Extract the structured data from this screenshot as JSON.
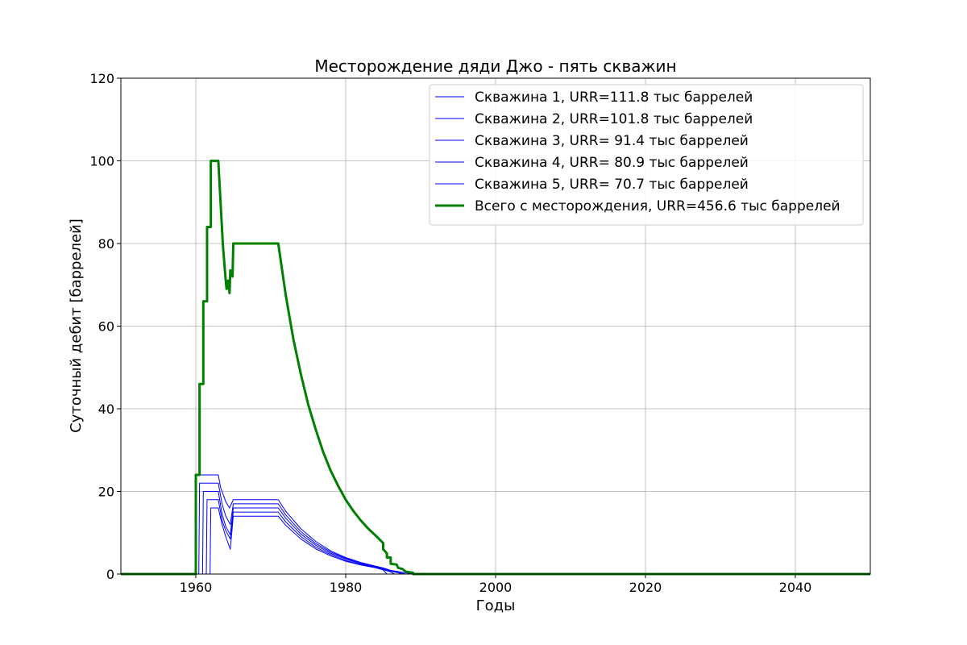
{
  "chart_data": {
    "type": "line",
    "title": "Месторождение дяди Джо - пять скважин",
    "xlabel": "Годы",
    "ylabel": "Суточный дебит [баррелей]",
    "xlim": [
      1950,
      2050
    ],
    "ylim": [
      0,
      120
    ],
    "xticks": [
      1960,
      1980,
      2000,
      2020,
      2040
    ],
    "yticks": [
      0,
      20,
      40,
      60,
      80,
      100,
      120
    ],
    "grid": true,
    "legend_position": "top-right",
    "series": [
      {
        "name": "Скважина 1, URR=111.8 тыс баррелей",
        "color": "#0000ff",
        "linewidth": "thin",
        "points": [
          [
            1950,
            0
          ],
          [
            1959.9,
            0
          ],
          [
            1960,
            24
          ],
          [
            1963,
            24
          ],
          [
            1963.3,
            21
          ],
          [
            1964,
            17.5
          ],
          [
            1964.5,
            16
          ],
          [
            1965,
            18
          ],
          [
            1971,
            18
          ],
          [
            1972,
            15.2
          ],
          [
            1974,
            11
          ],
          [
            1976,
            7.9
          ],
          [
            1978,
            5.6
          ],
          [
            1980,
            4
          ],
          [
            1982,
            2.8
          ],
          [
            1984,
            1.9
          ],
          [
            1985,
            1.5
          ],
          [
            1986,
            0.9
          ],
          [
            1987,
            0.6
          ],
          [
            1988,
            0.3
          ],
          [
            1989,
            0
          ],
          [
            2050,
            0
          ]
        ]
      },
      {
        "name": "Скважина 2, URR=101.8 тыс баррелей",
        "color": "#0000ff",
        "linewidth": "thin",
        "points": [
          [
            1950,
            0
          ],
          [
            1960.4,
            0
          ],
          [
            1960.5,
            22
          ],
          [
            1963,
            22
          ],
          [
            1963.5,
            17
          ],
          [
            1964,
            14
          ],
          [
            1964.6,
            12
          ],
          [
            1965,
            17
          ],
          [
            1971,
            17
          ],
          [
            1972,
            14.3
          ],
          [
            1974,
            10.3
          ],
          [
            1976,
            7.4
          ],
          [
            1978,
            5.3
          ],
          [
            1980,
            3.8
          ],
          [
            1982,
            2.6
          ],
          [
            1984,
            1.8
          ],
          [
            1985,
            1.3
          ],
          [
            1986,
            0.8
          ],
          [
            1987,
            0.4
          ],
          [
            1988,
            0
          ],
          [
            2050,
            0
          ]
        ]
      },
      {
        "name": "Скважина 3, URR= 91.4 тыс баррелей",
        "color": "#0000ff",
        "linewidth": "thin",
        "points": [
          [
            1950,
            0
          ],
          [
            1960.9,
            0
          ],
          [
            1961,
            20
          ],
          [
            1963,
            20
          ],
          [
            1963.5,
            14.5
          ],
          [
            1964,
            11.5
          ],
          [
            1964.6,
            9.5
          ],
          [
            1965,
            16
          ],
          [
            1971,
            16
          ],
          [
            1972,
            13.5
          ],
          [
            1974,
            9.7
          ],
          [
            1976,
            7
          ],
          [
            1978,
            5
          ],
          [
            1980,
            3.6
          ],
          [
            1982,
            2.5
          ],
          [
            1984,
            1.7
          ],
          [
            1985,
            1.2
          ],
          [
            1986,
            0.7
          ],
          [
            1987,
            0.3
          ],
          [
            1987.5,
            0
          ],
          [
            2050,
            0
          ]
        ]
      },
      {
        "name": "Скважина 4, URR= 80.9 тыс баррелей",
        "color": "#0000ff",
        "linewidth": "thin",
        "points": [
          [
            1950,
            0
          ],
          [
            1961.4,
            0
          ],
          [
            1961.5,
            18
          ],
          [
            1963,
            18
          ],
          [
            1963.5,
            13
          ],
          [
            1964,
            10.5
          ],
          [
            1964.6,
            8.5
          ],
          [
            1965,
            15
          ],
          [
            1971,
            15
          ],
          [
            1972,
            12.6
          ],
          [
            1974,
            9.1
          ],
          [
            1976,
            6.5
          ],
          [
            1978,
            4.7
          ],
          [
            1980,
            3.3
          ],
          [
            1982,
            2.3
          ],
          [
            1984,
            1.6
          ],
          [
            1985,
            1.1
          ],
          [
            1986,
            0.5
          ],
          [
            1986.5,
            0
          ],
          [
            2050,
            0
          ]
        ]
      },
      {
        "name": "Скважина 5, URR= 70.7 тыс баррелей",
        "color": "#0000ff",
        "linewidth": "thin",
        "points": [
          [
            1950,
            0
          ],
          [
            1961.9,
            0
          ],
          [
            1962,
            16
          ],
          [
            1963,
            16
          ],
          [
            1963.5,
            12
          ],
          [
            1964,
            9
          ],
          [
            1964.6,
            6
          ],
          [
            1965,
            14
          ],
          [
            1971,
            14
          ],
          [
            1972,
            11.8
          ],
          [
            1974,
            8.5
          ],
          [
            1976,
            6.1
          ],
          [
            1978,
            4.4
          ],
          [
            1980,
            3.1
          ],
          [
            1982,
            2.2
          ],
          [
            1984,
            1.5
          ],
          [
            1985,
            1
          ],
          [
            1985.5,
            0
          ],
          [
            2050,
            0
          ]
        ]
      },
      {
        "name": "Всего с месторождения, URR=456.6 тыс баррелей",
        "color": "#008000",
        "linewidth": "thick",
        "points": [
          [
            1950,
            0
          ],
          [
            1960,
            0
          ],
          [
            1960,
            24
          ],
          [
            1960.5,
            24
          ],
          [
            1960.5,
            46
          ],
          [
            1961,
            46
          ],
          [
            1961,
            66
          ],
          [
            1961.5,
            66
          ],
          [
            1961.5,
            84
          ],
          [
            1962,
            84
          ],
          [
            1962,
            100
          ],
          [
            1963,
            100
          ],
          [
            1963.3,
            90
          ],
          [
            1963.6,
            80
          ],
          [
            1963.9,
            73
          ],
          [
            1964.1,
            69
          ],
          [
            1964.3,
            71
          ],
          [
            1964.5,
            68
          ],
          [
            1964.6,
            73.5
          ],
          [
            1964.8,
            72.5
          ],
          [
            1964.9,
            72
          ],
          [
            1965,
            80
          ],
          [
            1971,
            80
          ],
          [
            1972,
            67.5
          ],
          [
            1973,
            57
          ],
          [
            1974,
            48.5
          ],
          [
            1975,
            41
          ],
          [
            1976,
            35
          ],
          [
            1977,
            29.5
          ],
          [
            1978,
            25
          ],
          [
            1979,
            21.3
          ],
          [
            1980,
            18
          ],
          [
            1981,
            15.3
          ],
          [
            1982,
            13
          ],
          [
            1983,
            11
          ],
          [
            1984,
            9.3
          ],
          [
            1985,
            7.5
          ],
          [
            1985,
            6
          ],
          [
            1985.5,
            5
          ],
          [
            1985.5,
            4
          ],
          [
            1986,
            4
          ],
          [
            1986,
            2.5
          ],
          [
            1986.8,
            2.3
          ],
          [
            1987,
            1.5
          ],
          [
            1987.6,
            1.2
          ],
          [
            1988,
            0.6
          ],
          [
            1989,
            0.3
          ],
          [
            1989,
            0
          ],
          [
            2050,
            0
          ]
        ]
      }
    ]
  }
}
